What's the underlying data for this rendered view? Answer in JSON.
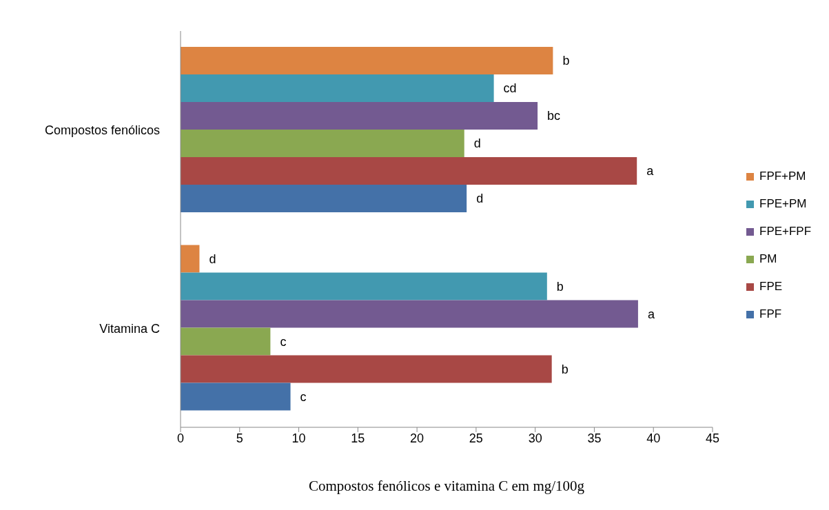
{
  "chart_data": {
    "type": "bar",
    "orientation": "horizontal",
    "xlabel": "Compostos fenólicos e vitamina C em mg/100g",
    "categories": [
      "Compostos fenólicos",
      "Vitamina C"
    ],
    "xlim": [
      0,
      45
    ],
    "xticks": [
      0,
      5,
      10,
      15,
      20,
      25,
      30,
      35,
      40,
      45
    ],
    "legend": "right",
    "series": [
      {
        "name": "FPF",
        "color": "#4471a8",
        "values": [
          24.2,
          9.3
        ],
        "value_labels": [
          "d",
          "c"
        ]
      },
      {
        "name": "FPE",
        "color": "#a84845",
        "values": [
          38.6,
          31.4
        ],
        "value_labels": [
          "a",
          "b"
        ]
      },
      {
        "name": "PM",
        "color": "#8aa851",
        "values": [
          24.0,
          7.6
        ],
        "value_labels": [
          "d",
          "c"
        ]
      },
      {
        "name": "FPE+FPF",
        "color": "#735a91",
        "values": [
          30.2,
          38.7
        ],
        "value_labels": [
          "bc",
          "a"
        ]
      },
      {
        "name": "FPE+PM",
        "color": "#4299b0",
        "values": [
          26.5,
          31.0
        ],
        "value_labels": [
          "cd",
          "b"
        ]
      },
      {
        "name": "FPF+PM",
        "color": "#dd8442",
        "values": [
          31.5,
          1.6
        ],
        "value_labels": [
          "b",
          "d"
        ]
      }
    ]
  }
}
